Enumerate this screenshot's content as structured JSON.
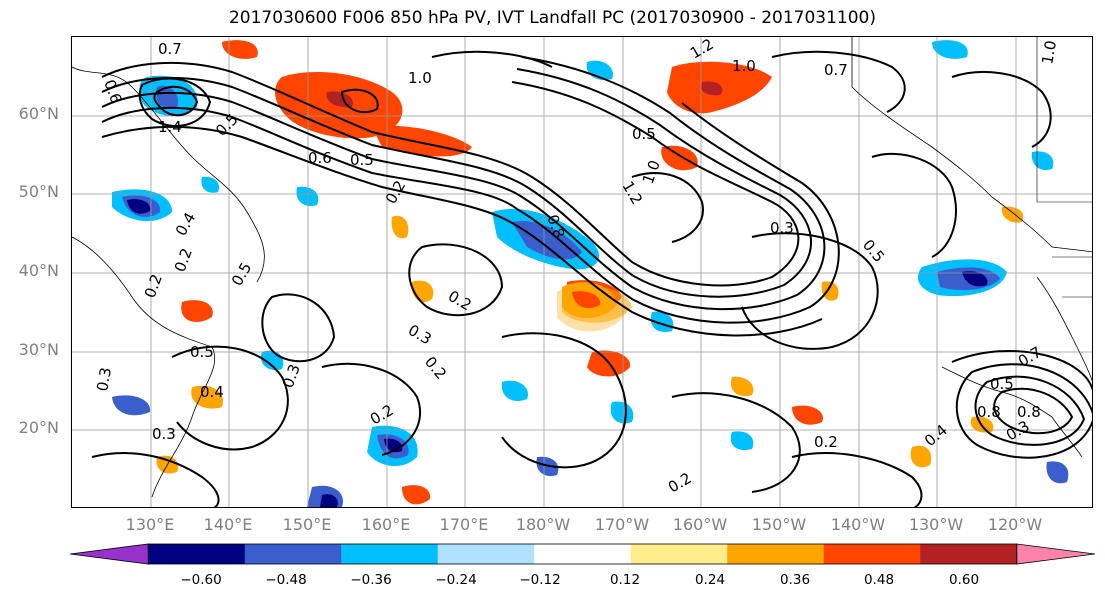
{
  "title": "2017030600 F006 850 hPa PV, IVT Landfall PC (2017030900 - 2017031100)",
  "lat_labels": [
    "60°N",
    "50°N",
    "40°N",
    "30°N",
    "20°N"
  ],
  "lon_labels": [
    "130°E",
    "140°E",
    "150°E",
    "160°E",
    "170°E",
    "180°W",
    "170°W",
    "160°W",
    "150°W",
    "140°W",
    "130°W",
    "120°W"
  ],
  "colorbar": {
    "ticks": [
      "−0.60",
      "−0.48",
      "−0.36",
      "−0.24",
      "−0.12",
      "0.12",
      "0.24",
      "0.36",
      "0.48",
      "0.60"
    ],
    "colors": [
      "#9932cc",
      "#000080",
      "#3a5fcd",
      "#00bfff",
      "#b0e2ff",
      "#ffffff",
      "#ffec8b",
      "#ffa500",
      "#ff4500",
      "#b22222",
      "#ff82ab"
    ]
  },
  "contour_labels": [
    "0.7",
    "0.6",
    "1.4",
    "0.5",
    "0.2",
    "0.4",
    "0.2",
    "0.5",
    "0.3",
    "0.3",
    "1.0",
    "0.6",
    "0.5",
    "0.2",
    "0.2",
    "0.3",
    "0.2",
    "0.3",
    "1.0",
    "0.5",
    "0.8",
    "1.2",
    "1.0",
    "1.2",
    "0.7",
    "0.5",
    "0.3",
    "0.2",
    "0.2",
    "0.2",
    "0.8",
    "1.0",
    "0.7",
    "0.5",
    "0.8",
    "0.4",
    "0.3",
    "0.5",
    "0.4"
  ]
}
